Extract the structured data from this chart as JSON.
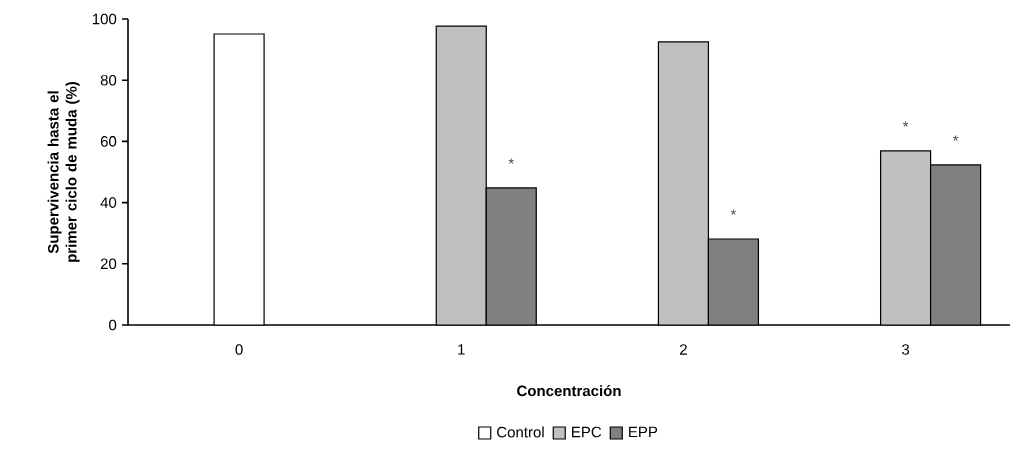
{
  "chart_data": {
    "type": "bar",
    "xlabel": "Concentración",
    "ylabel": "Supervivencia hasta el primer ciclo de muda (%)",
    "categories": [
      "0",
      "1",
      "2",
      "3"
    ],
    "series": [
      {
        "name": "Control",
        "color": "#ffffff",
        "values": [
          95.1,
          null,
          null,
          null
        ]
      },
      {
        "name": "EPC",
        "color": "#c0c0c0",
        "values": [
          null,
          97.7,
          92.5,
          56.9
        ],
        "value_labels": [
          null,
          null,
          null,
          "*"
        ]
      },
      {
        "name": "EPP",
        "color": "#808080",
        "values": [
          null,
          44.8,
          28.1,
          52.3
        ],
        "value_labels": [
          null,
          "*",
          "*",
          "*"
        ]
      }
    ],
    "ylim": [
      0,
      100
    ],
    "yticks": [
      0,
      20,
      40,
      60,
      80,
      100
    ],
    "grid": false,
    "legend": "bottom"
  }
}
